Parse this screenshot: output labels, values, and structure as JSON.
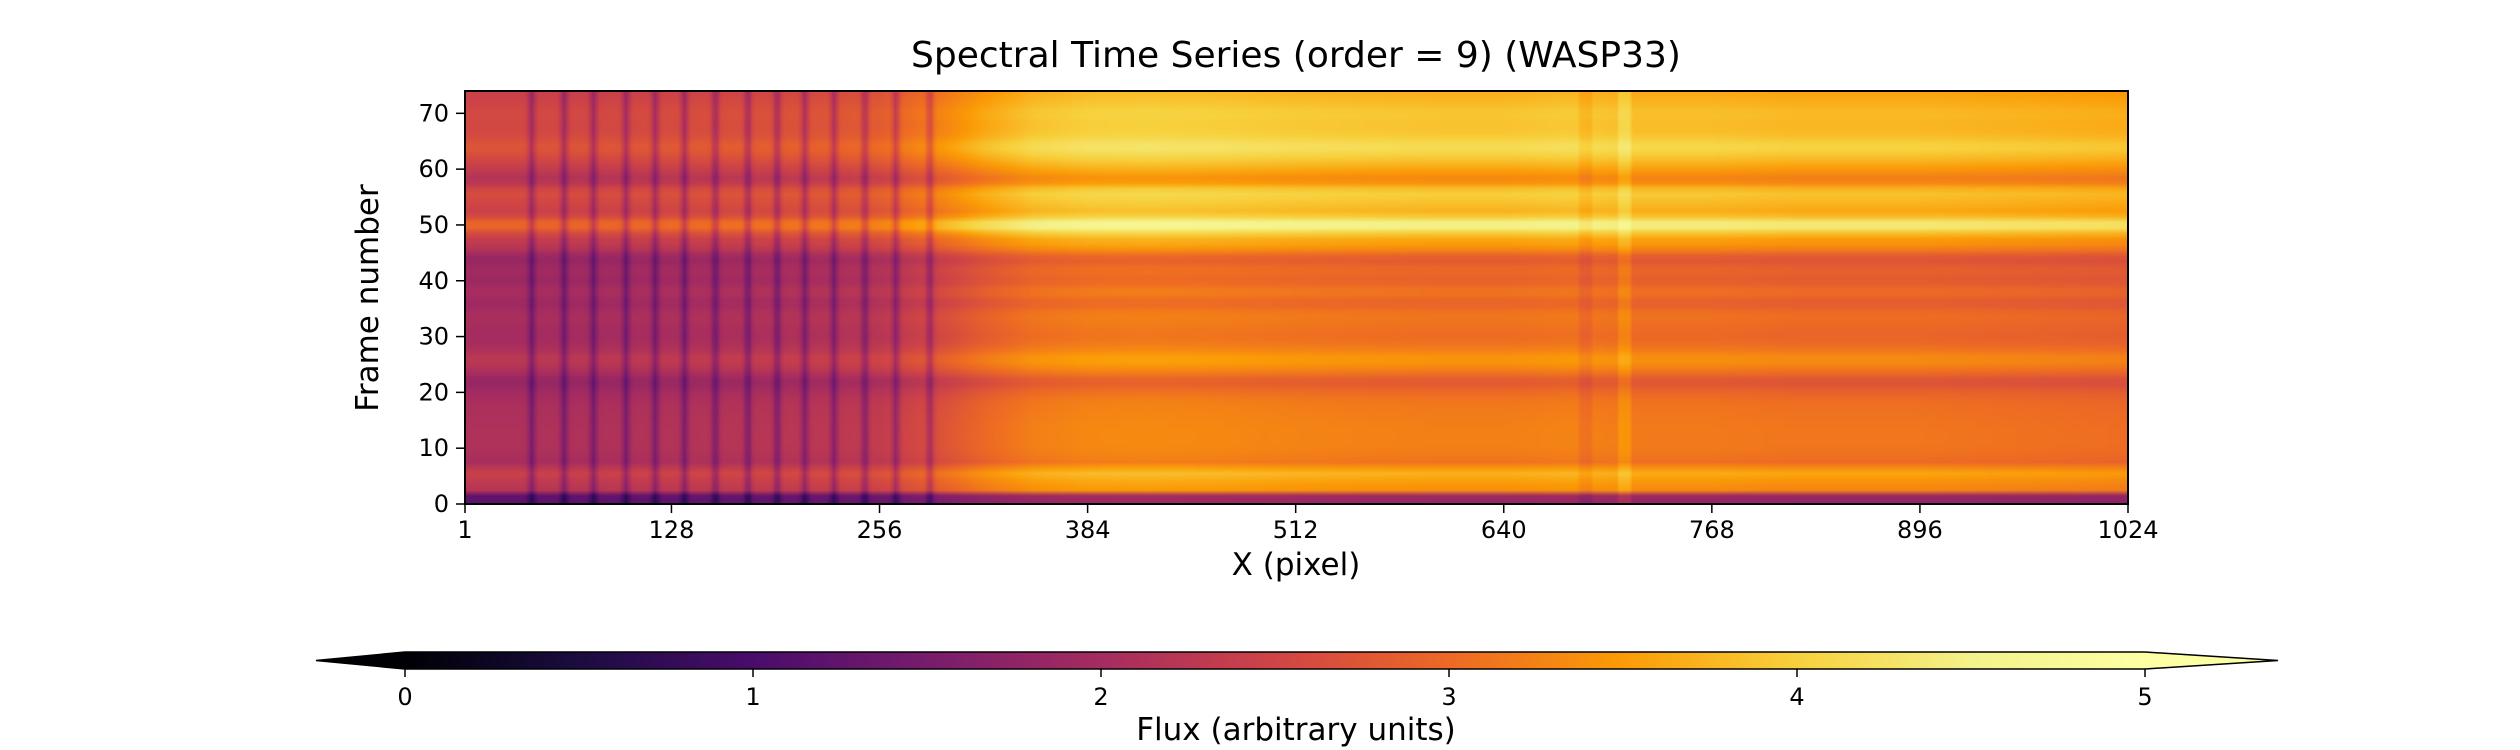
{
  "chart_data": {
    "type": "heatmap",
    "title": "Spectral Time Series (order = 9) (WASP33)",
    "xlabel": "X (pixel)",
    "ylabel": "Frame number",
    "colorbar_label": "Flux (arbitrary units)",
    "colormap": "inferno",
    "x_range": [
      1,
      1024
    ],
    "y_range": [
      0,
      74
    ],
    "x_ticks": [
      1,
      128,
      256,
      384,
      512,
      640,
      768,
      896,
      1024
    ],
    "y_ticks": [
      0,
      10,
      20,
      30,
      40,
      50,
      60,
      70
    ],
    "colorbar_range": [
      0,
      5
    ],
    "colorbar_ticks": [
      0,
      1,
      2,
      3,
      4,
      5
    ],
    "colorbar_extend": "both",
    "grid": false,
    "column_profile": {
      "x": [
        1,
        40,
        80,
        128,
        180,
        220,
        256,
        290,
        320,
        350,
        384,
        420,
        460,
        512,
        560,
        600,
        640,
        680,
        720,
        768,
        820,
        896,
        960,
        1024
      ],
      "flux": [
        2.3,
        2.3,
        2.3,
        2.35,
        2.4,
        2.45,
        2.55,
        2.9,
        3.25,
        3.5,
        3.6,
        3.62,
        3.6,
        3.55,
        3.52,
        3.5,
        3.5,
        3.55,
        3.45,
        3.45,
        3.4,
        3.4,
        3.35,
        3.3
      ]
    },
    "row_factor": {
      "frames": [
        0,
        1,
        2,
        4,
        6,
        7,
        10,
        14,
        18,
        20,
        22,
        24,
        26,
        28,
        30,
        34,
        36,
        38,
        40,
        42,
        44,
        46,
        48,
        50,
        52,
        54,
        56,
        58,
        60,
        62,
        64,
        66,
        68,
        70,
        72,
        74
      ],
      "factor": [
        0.9,
        0.15,
        0.95,
        1.0,
        1.08,
        0.88,
        0.92,
        0.92,
        0.9,
        0.86,
        0.78,
        0.92,
        1.0,
        0.9,
        0.86,
        0.9,
        0.82,
        0.9,
        0.82,
        0.86,
        0.78,
        0.98,
        1.05,
        1.35,
        1.05,
        1.1,
        1.15,
        0.92,
        1.02,
        1.12,
        1.2,
        1.12,
        1.1,
        1.12,
        1.08,
        1.05
      ]
    },
    "absorption_lines_x": [
      42,
      62,
      80,
      100,
      118,
      136,
      155,
      175,
      193,
      210,
      228,
      247,
      266,
      287
    ],
    "absorption_depth": 0.6
  }
}
